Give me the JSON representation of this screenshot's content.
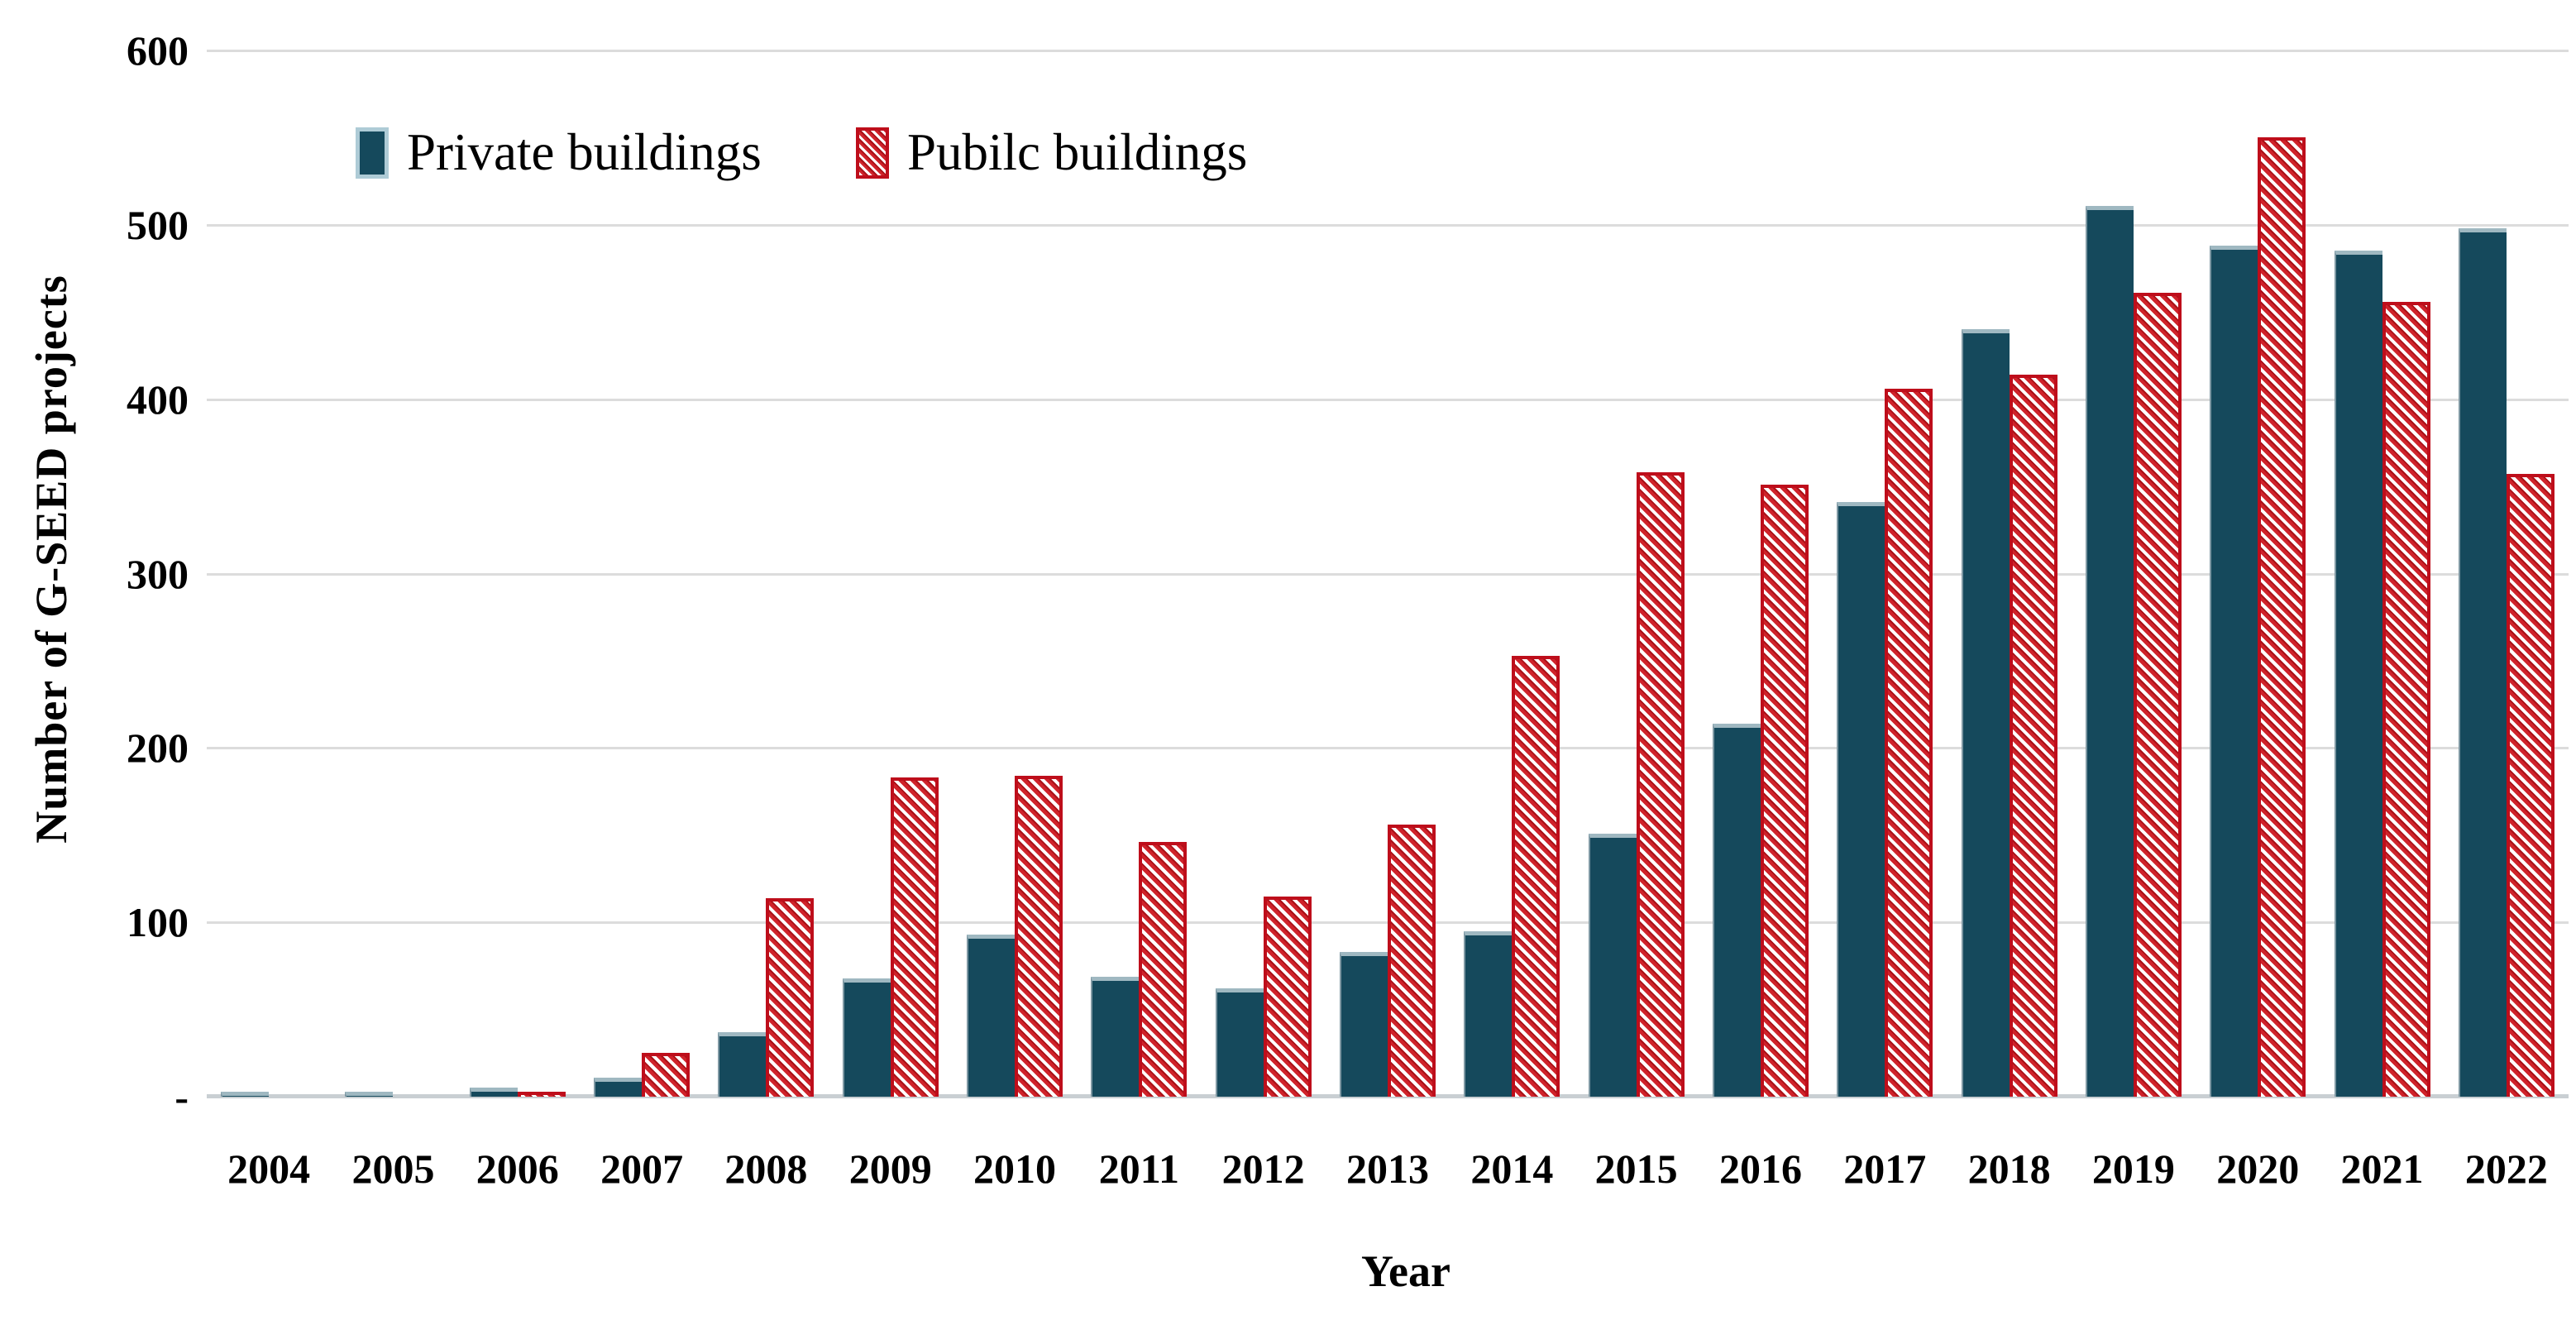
{
  "figure": {
    "background": "#ffffff"
  },
  "legend": {
    "private_label": "Private buildings",
    "public_label": "Pubilc buildings"
  },
  "axes": {
    "y_title": "Number of G-SEED projects",
    "x_title": "Year"
  },
  "colors": {
    "private_fill": "#15495c",
    "private_cap": "#9fb8c1",
    "public_red": "#d0232b",
    "public_dark_red": "#aa1218",
    "public_border": "#be0e1b",
    "gridline": "#dcdcdc",
    "axis_line": "#c9cfd3",
    "text": "#000000"
  },
  "chart_data": {
    "type": "bar",
    "title": "",
    "xlabel": "Year",
    "ylabel": "Number of G-SEED projects",
    "categories": [
      "2004",
      "2005",
      "2006",
      "2007",
      "2008",
      "2009",
      "2010",
      "2011",
      "2012",
      "2013",
      "2014",
      "2015",
      "2016",
      "2017",
      "2018",
      "2019",
      "2020",
      "2021",
      "2022"
    ],
    "series": [
      {
        "name": "Private buildings",
        "color": "#15495c",
        "values": [
          3,
          3,
          5,
          11,
          37,
          68,
          93,
          69,
          62,
          83,
          95,
          151,
          214,
          341,
          440,
          511,
          488,
          485,
          498
        ]
      },
      {
        "name": "Pubilc buildings",
        "color": "#d0232b",
        "hatch": "white-diagonal-stripes",
        "values": [
          0,
          0,
          3,
          25,
          114,
          183,
          184,
          146,
          115,
          156,
          253,
          358,
          351,
          406,
          414,
          461,
          550,
          456,
          357
        ]
      }
    ],
    "ylim": [
      0,
      600
    ],
    "yticks": [
      0,
      100,
      200,
      300,
      400,
      500,
      600
    ],
    "ytick_labels": [
      "-",
      "100",
      "200",
      "300",
      "400",
      "500",
      "600"
    ],
    "grid": "horizontal",
    "legend_position": "top-left-inside"
  }
}
